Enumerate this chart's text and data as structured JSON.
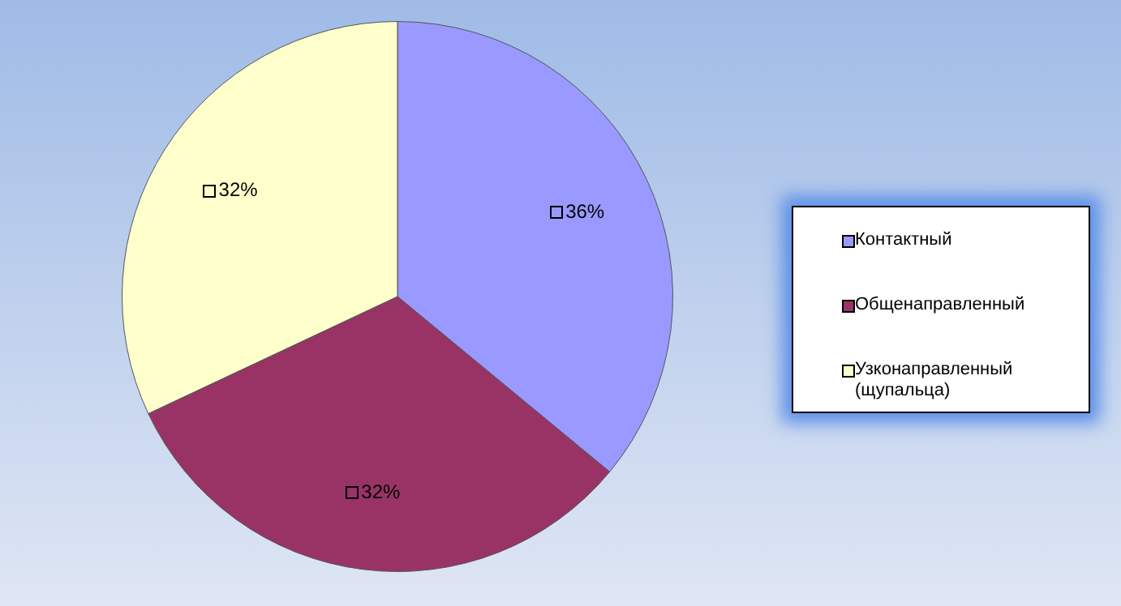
{
  "chart_data": {
    "type": "pie",
    "categories": [
      "Контактный",
      "Общенаправленный",
      "Узконаправленный (щупальца)"
    ],
    "values": [
      36,
      32,
      32
    ],
    "colors": [
      "#9999ff",
      "#993366",
      "#ffffcc"
    ],
    "value_labels": [
      "36%",
      "32%",
      "32%"
    ],
    "legend": "right"
  }
}
